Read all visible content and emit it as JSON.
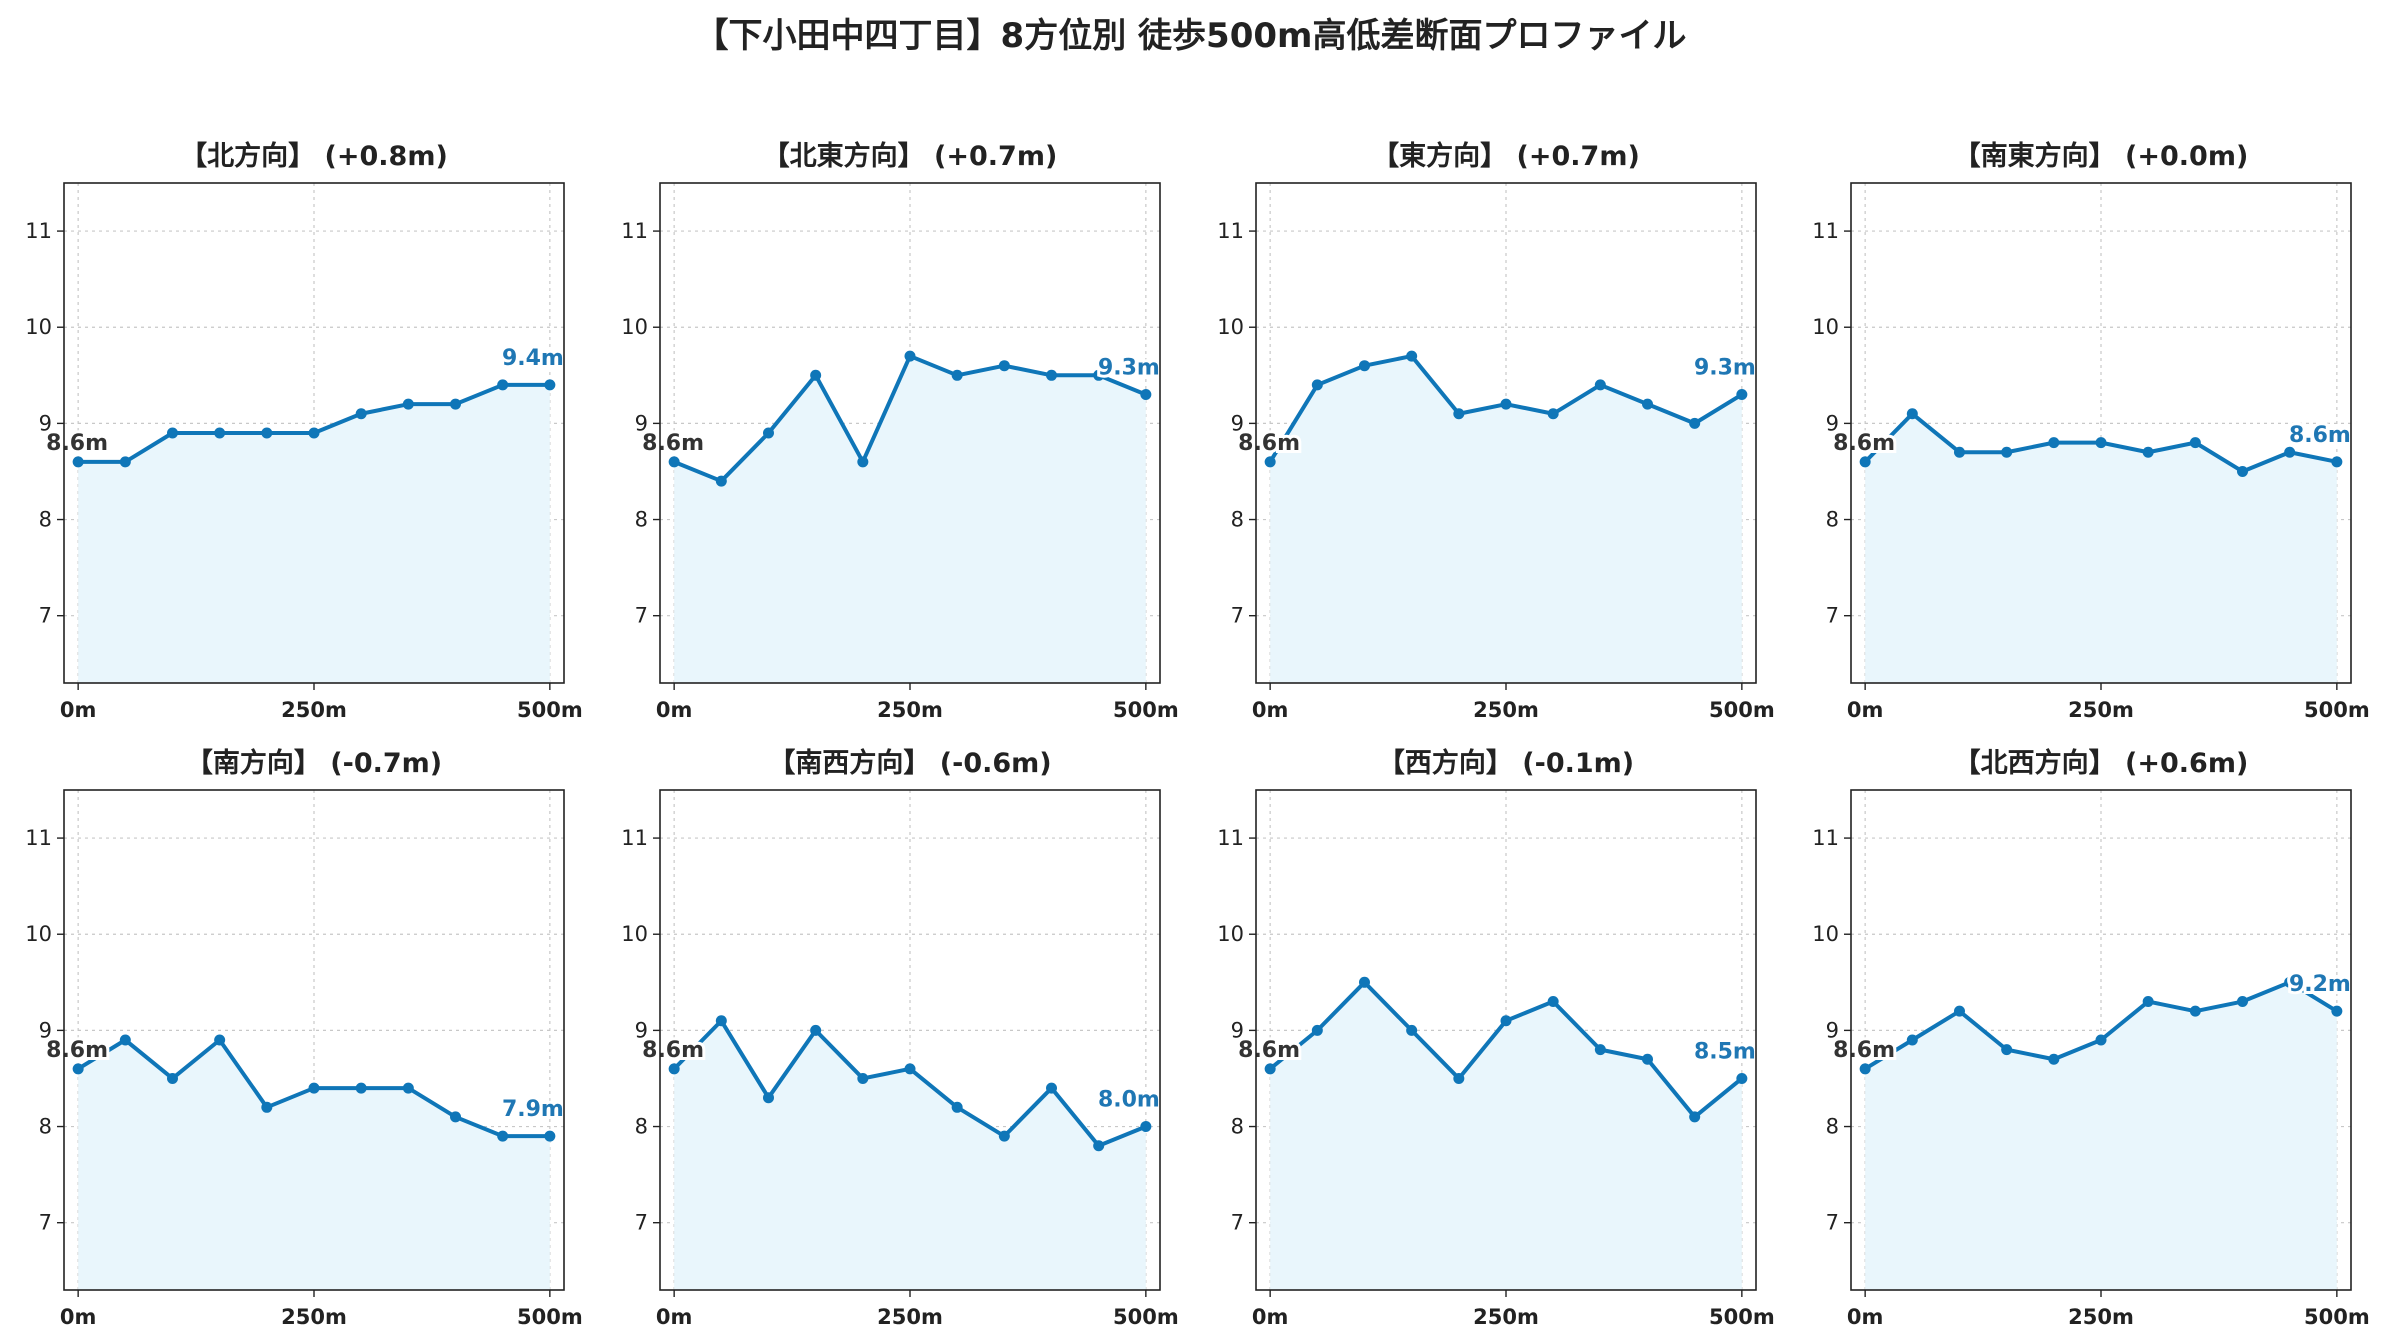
{
  "title": "【下小田中四丁目】8方位別 徒歩500m高低差断面プロファイル",
  "colors": {
    "line": "#0f76b8",
    "fill": "#e9f6fc",
    "grid": "#c8c8c8",
    "start_label": "#333333",
    "end_label": "#1f77b4"
  },
  "chart_data": [
    {
      "type": "area",
      "title": "【北方向】 (+0.8m)",
      "x": [
        0,
        50,
        100,
        150,
        200,
        250,
        300,
        350,
        400,
        450,
        500
      ],
      "values": [
        8.6,
        8.6,
        8.9,
        8.9,
        8.9,
        8.9,
        9.1,
        9.2,
        9.2,
        9.4,
        9.4
      ],
      "start_label": "8.6m",
      "end_label": "9.4m"
    },
    {
      "type": "area",
      "title": "【北東方向】 (+0.7m)",
      "x": [
        0,
        50,
        100,
        150,
        200,
        250,
        300,
        350,
        400,
        450,
        500
      ],
      "values": [
        8.6,
        8.4,
        8.9,
        9.5,
        8.6,
        9.7,
        9.5,
        9.6,
        9.5,
        9.5,
        9.3
      ],
      "start_label": "8.6m",
      "end_label": "9.3m"
    },
    {
      "type": "area",
      "title": "【東方向】 (+0.7m)",
      "x": [
        0,
        50,
        100,
        150,
        200,
        250,
        300,
        350,
        400,
        450,
        500
      ],
      "values": [
        8.6,
        9.4,
        9.6,
        9.7,
        9.1,
        9.2,
        9.1,
        9.4,
        9.2,
        9.0,
        9.3
      ],
      "start_label": "8.6m",
      "end_label": "9.3m"
    },
    {
      "type": "area",
      "title": "【南東方向】 (+0.0m)",
      "x": [
        0,
        50,
        100,
        150,
        200,
        250,
        300,
        350,
        400,
        450,
        500
      ],
      "values": [
        8.6,
        9.1,
        8.7,
        8.7,
        8.8,
        8.8,
        8.7,
        8.8,
        8.5,
        8.7,
        8.6
      ],
      "start_label": "8.6m",
      "end_label": "8.6m"
    },
    {
      "type": "area",
      "title": "【南方向】 (-0.7m)",
      "x": [
        0,
        50,
        100,
        150,
        200,
        250,
        300,
        350,
        400,
        450,
        500
      ],
      "values": [
        8.6,
        8.9,
        8.5,
        8.9,
        8.2,
        8.4,
        8.4,
        8.4,
        8.1,
        7.9,
        7.9
      ],
      "start_label": "8.6m",
      "end_label": "7.9m"
    },
    {
      "type": "area",
      "title": "【南西方向】 (-0.6m)",
      "x": [
        0,
        50,
        100,
        150,
        200,
        250,
        300,
        350,
        400,
        450,
        500
      ],
      "values": [
        8.6,
        9.1,
        8.3,
        9.0,
        8.5,
        8.6,
        8.2,
        7.9,
        8.4,
        7.8,
        8.0
      ],
      "start_label": "8.6m",
      "end_label": "8.0m"
    },
    {
      "type": "area",
      "title": "【西方向】 (-0.1m)",
      "x": [
        0,
        50,
        100,
        150,
        200,
        250,
        300,
        350,
        400,
        450,
        500
      ],
      "values": [
        8.6,
        9.0,
        9.5,
        9.0,
        8.5,
        9.1,
        9.3,
        8.8,
        8.7,
        8.1,
        8.5
      ],
      "start_label": "8.6m",
      "end_label": "8.5m"
    },
    {
      "type": "area",
      "title": "【北西方向】 (+0.6m)",
      "x": [
        0,
        50,
        100,
        150,
        200,
        250,
        300,
        350,
        400,
        450,
        500
      ],
      "values": [
        8.6,
        8.9,
        9.2,
        8.8,
        8.7,
        8.9,
        9.3,
        9.2,
        9.3,
        9.5,
        9.2
      ],
      "start_label": "8.6m",
      "end_label": "9.2m"
    }
  ],
  "axes": {
    "xlim": [
      -15,
      515
    ],
    "ylim": [
      6.3,
      11.5
    ],
    "xticks": [
      0,
      250,
      500
    ],
    "xtick_labels": [
      "0m",
      "250m",
      "500m"
    ],
    "yticks": [
      7,
      8,
      9,
      10,
      11
    ],
    "ytick_labels": [
      "7",
      "8",
      "9",
      "10",
      "11"
    ],
    "grid": true
  }
}
